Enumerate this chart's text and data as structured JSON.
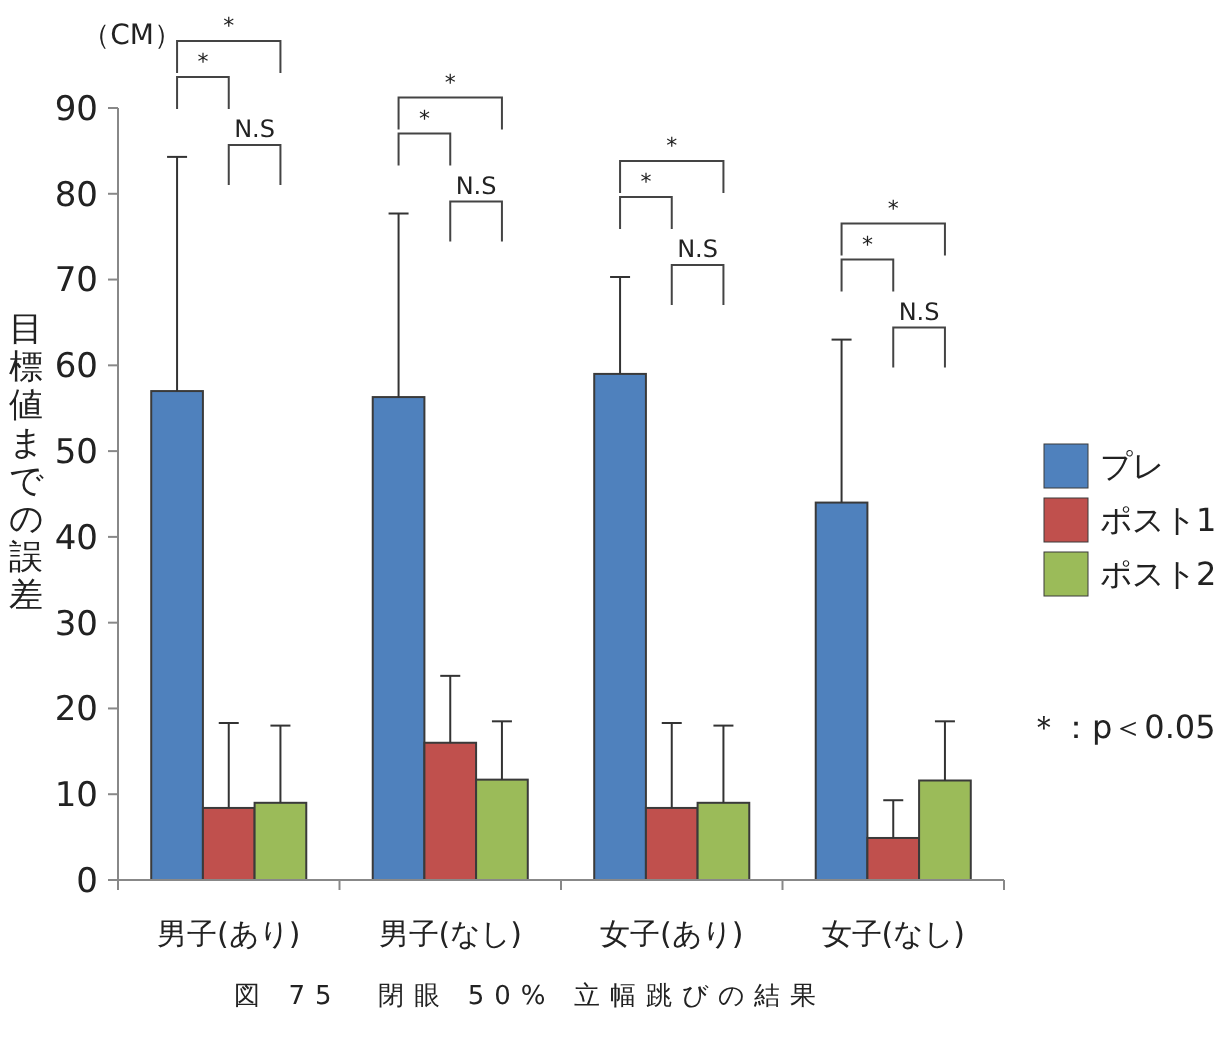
{
  "chart_data": {
    "type": "bar",
    "title": "図 75　閉眼 50% 立幅跳びの結果",
    "ylabel": "目標値までの誤差",
    "categories": [
      "男子(あり)",
      "男子(なし)",
      "女子(あり)",
      "女子(なし)"
    ],
    "series": [
      {
        "name": "プレ",
        "color": "#4f81bd",
        "values": [
          57,
          56.3,
          59,
          44
        ],
        "errors": [
          [
            57,
            84.3
          ],
          [
            56.3,
            77.7
          ],
          [
            59,
            70.3
          ],
          [
            44,
            63
          ]
        ]
      },
      {
        "name": "ポスト1",
        "color": "#c0504d",
        "values": [
          8.4,
          16,
          8.4,
          4.9
        ],
        "errors": [
          [
            8.4,
            18.3
          ],
          [
            16,
            23.8
          ],
          [
            8.4,
            18.3
          ],
          [
            4.9,
            9.3
          ]
        ]
      },
      {
        "name": "ポスト2",
        "color": "#9bbb59",
        "values": [
          9,
          11.7,
          9,
          11.6
        ],
        "errors": [
          [
            9,
            18
          ],
          [
            11.7,
            18.5
          ],
          [
            9,
            18
          ],
          [
            11.6,
            18.5
          ]
        ]
      }
    ],
    "ylim": [
      0,
      90
    ],
    "yticks": [
      0,
      10,
      20,
      30,
      40,
      50,
      60,
      70,
      80,
      90
    ],
    "legend": "right",
    "annotations": [
      "（CM）",
      "*",
      "*",
      "N.S",
      "*",
      "*",
      "N.S",
      "*",
      "*",
      "N.S",
      "*",
      "*",
      "N.S",
      "＊：p＜0.05"
    ]
  }
}
